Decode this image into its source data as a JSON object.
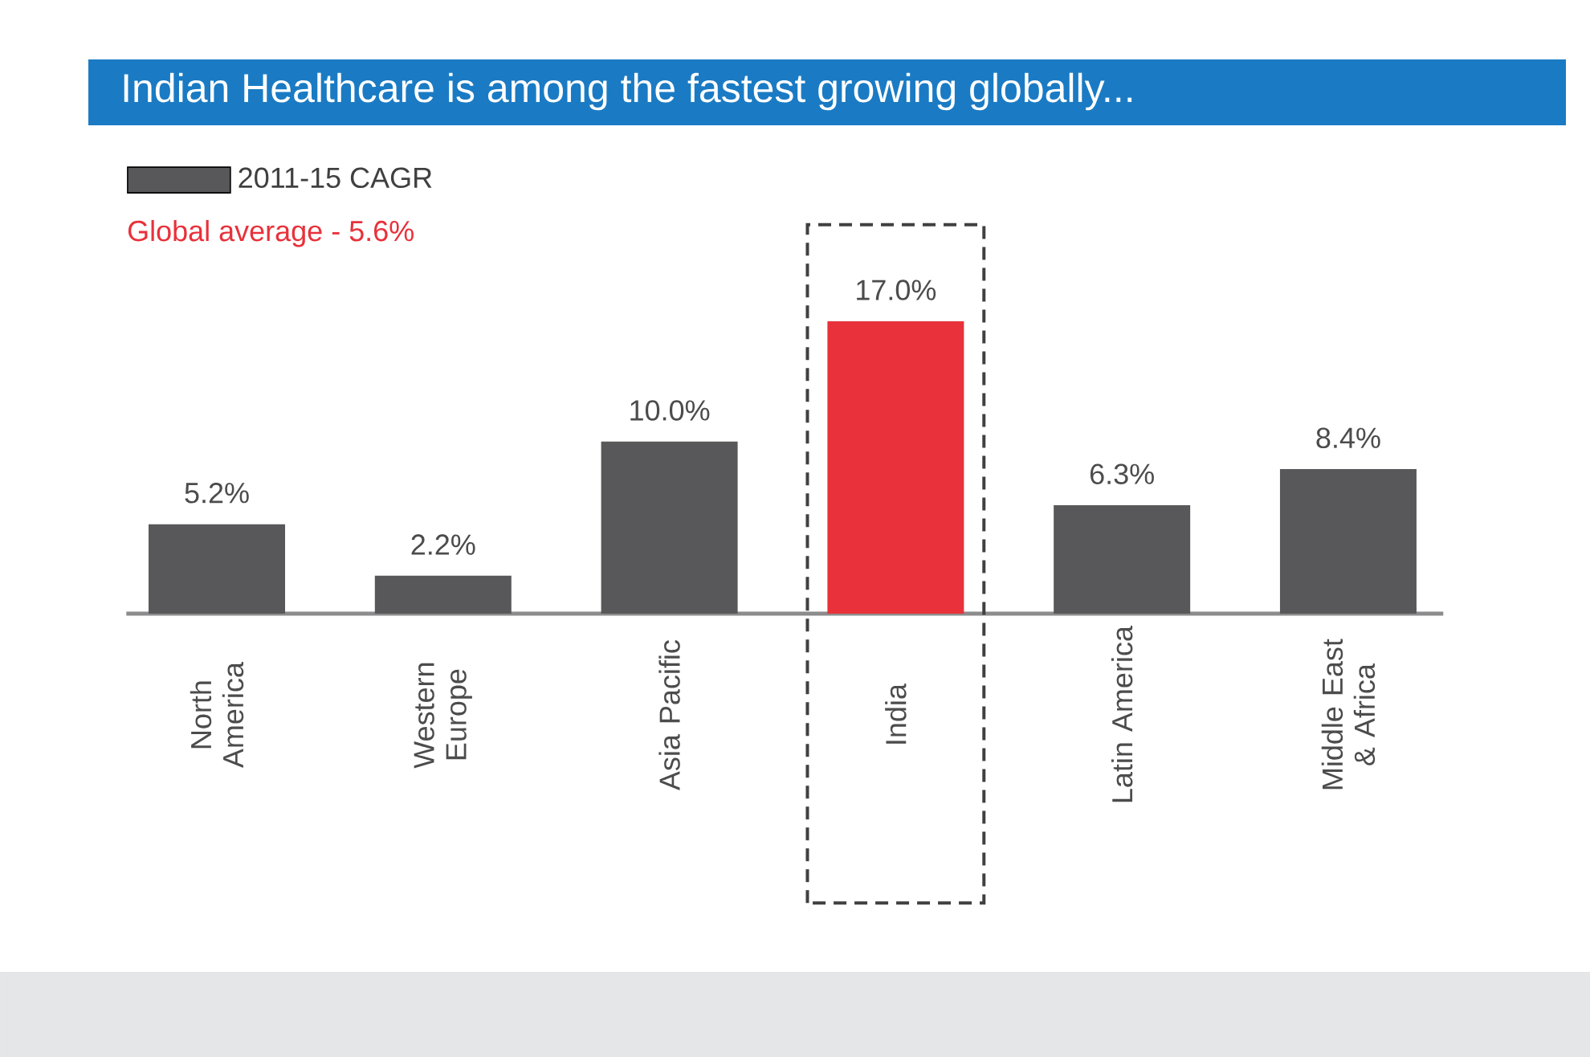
{
  "chart_data": {
    "type": "bar",
    "title": "Indian Healthcare is among the fastest growing globally...",
    "categories": [
      "North America",
      "Western Europe",
      "Asia Pacific",
      "India",
      "Latin America",
      "Middle East & Africa"
    ],
    "series": [
      {
        "name": "2011-15 CAGR",
        "color": "#58585a",
        "colors": [
          "#58585a",
          "#58585a",
          "#58585a",
          "#e8313a",
          "#58585a",
          "#58585a"
        ],
        "values": [
          5.2,
          2.2,
          10.0,
          17.0,
          6.3,
          8.4
        ],
        "value_labels": [
          "5.2%",
          "2.2%",
          "10.0%",
          "17.0%",
          "6.3%",
          "8.4%"
        ]
      }
    ],
    "annotations": [
      "Global average - 5.6%"
    ],
    "legend": "top left"
  }
}
